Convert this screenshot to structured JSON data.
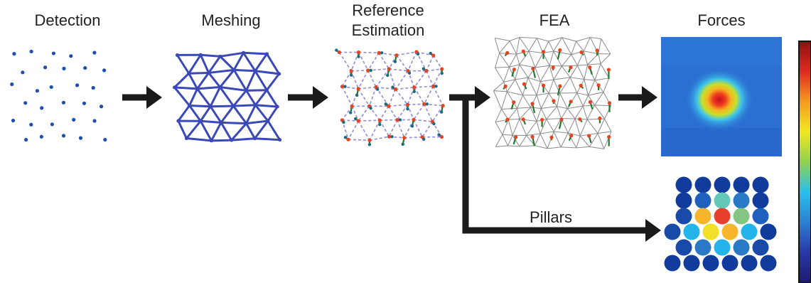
{
  "stages": [
    {
      "id": "detection",
      "label": "Detection"
    },
    {
      "id": "meshing",
      "label": "Meshing"
    },
    {
      "id": "reference",
      "label_line1": "Reference",
      "label_line2": "Estimation"
    },
    {
      "id": "fea",
      "label": "FEA"
    },
    {
      "id": "forces",
      "label": "Forces"
    }
  ],
  "branch_label": "Pillars",
  "colors": {
    "dot_blue": "#1f4fae",
    "mesh_blue": "#3a48b8",
    "dashed_purple": "#8c8cd8",
    "displacement_red": "#e8431f",
    "vector_green": "#1f7a2f",
    "fea_gray": "#8a8a8a",
    "arrow_black": "#1a1a1a"
  },
  "pillar_colors_rows": [
    [
      "#123c9c",
      "#123c9c",
      "#123c9c",
      "#123c9c",
      "#123c9c"
    ],
    [
      "#123c9c",
      "#1f5fbd",
      "#64c8b9",
      "#2a79c6",
      "#123c9c"
    ],
    [
      "#1a4aa8",
      "#f7b52c",
      "#e8412b",
      "#84c584",
      "#1f5fbd"
    ],
    [
      "#1a4aa8",
      "#24b4ea",
      "#f2df27",
      "#f7b52c",
      "#24b4ea",
      "#123c9c"
    ],
    [
      "#1a4aa8",
      "#2a79c6",
      "#24b4ea",
      "#2a79c6",
      "#1a4aa8"
    ],
    [
      "#123c9c",
      "#123c9c",
      "#123c9c",
      "#123c9c",
      "#123c9c",
      "#123c9c"
    ]
  ],
  "colorbar": [
    "#1c1b6e",
    "#2a36a8",
    "#2c7fd2",
    "#27c0ec",
    "#8fd14f",
    "#f1e81e",
    "#f59b1f",
    "#e02a1f",
    "#8f0f12"
  ]
}
